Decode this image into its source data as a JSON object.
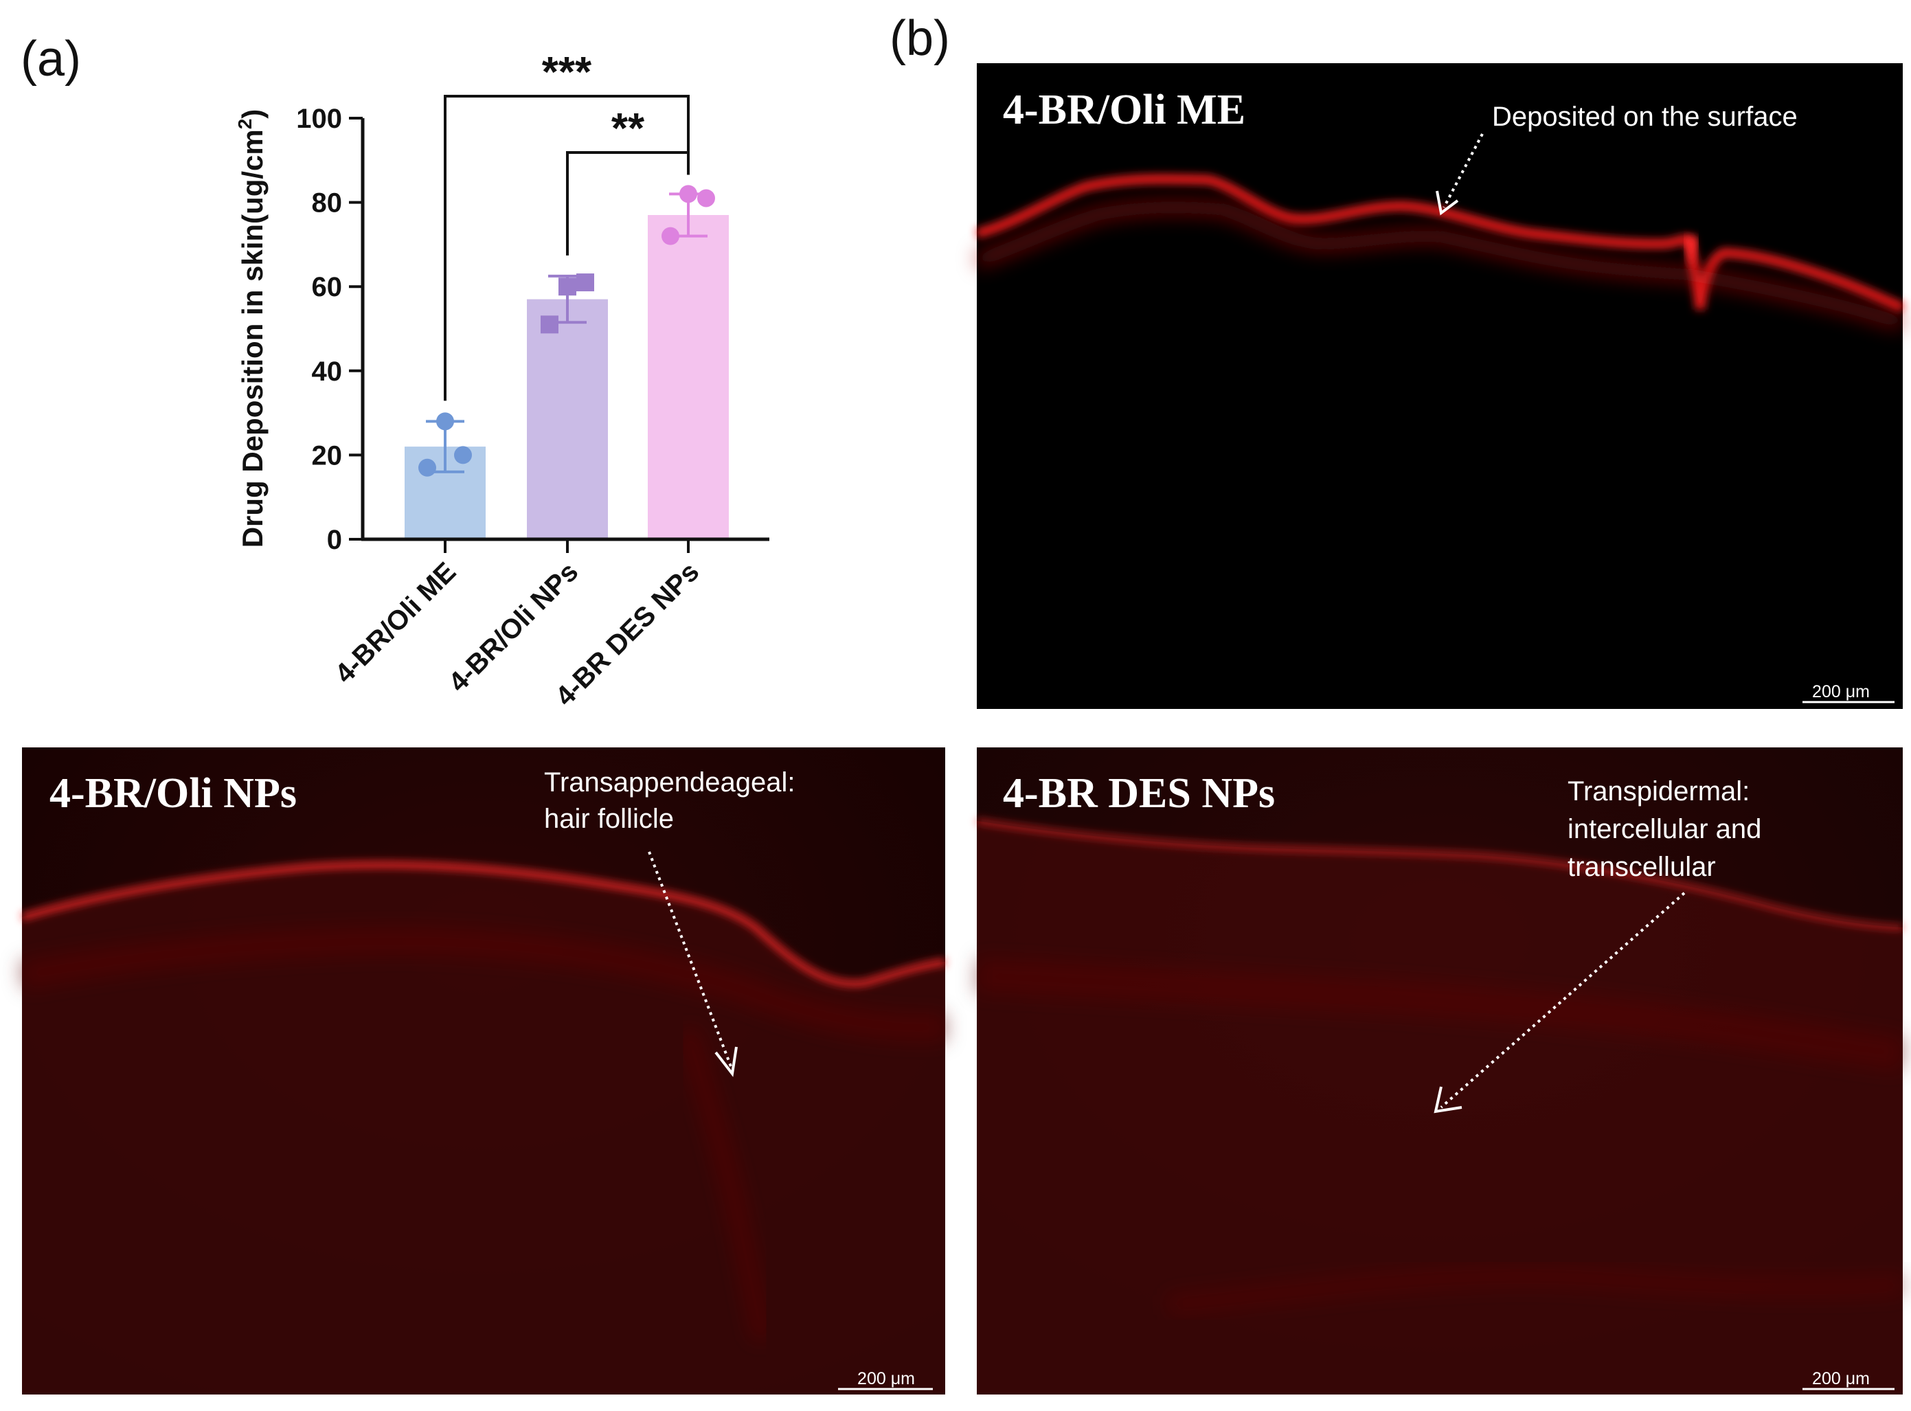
{
  "panel_labels": {
    "a": "(a)",
    "b": "(b)"
  },
  "chart_data": {
    "type": "bar",
    "title": "",
    "xlabel": "",
    "ylabel": "Drug Deposition in skin(ug/cm",
    "ylabel_superscript": "2",
    "ylabel_suffix": ")",
    "ylim": [
      0,
      100
    ],
    "yticks": [
      0,
      20,
      40,
      60,
      80,
      100
    ],
    "grid": false,
    "categories": [
      "4-BR/Oli ME",
      "4-BR/Oli NPs",
      "4-BR DES NPs"
    ],
    "values": [
      22,
      57,
      77
    ],
    "error": [
      6,
      5.5,
      5
    ],
    "points": [
      [
        28,
        17,
        20
      ],
      [
        60,
        51,
        61
      ],
      [
        82,
        72,
        81
      ]
    ],
    "bar_colors": [
      "#B3CCEA",
      "#CABBE6",
      "#F4C3EE"
    ],
    "marker_colors": [
      "#6F97D6",
      "#9A7DCB",
      "#DD82DF"
    ],
    "marker_shapes": [
      "circle",
      "square",
      "circle"
    ],
    "significance": [
      {
        "from": 0,
        "to": 2,
        "label": "***"
      },
      {
        "from": 1,
        "to": 2,
        "label": "**"
      }
    ]
  },
  "micrographs": [
    {
      "title": "4-BR/Oli ME",
      "notes": [
        "Deposited on the surface"
      ],
      "scale_bar": "200 μm"
    },
    {
      "title": "4-BR/Oli NPs",
      "notes": [
        "Transappendeageal:",
        "hair follicle"
      ],
      "scale_bar": "200 μm"
    },
    {
      "title": "4-BR DES NPs",
      "notes": [
        "Transpidermal:",
        "intercellular and",
        "transcellular"
      ],
      "scale_bar": "200 μm"
    }
  ],
  "colors": {
    "tissue_red": "#ff1a1a",
    "micro_background": "#000000"
  }
}
